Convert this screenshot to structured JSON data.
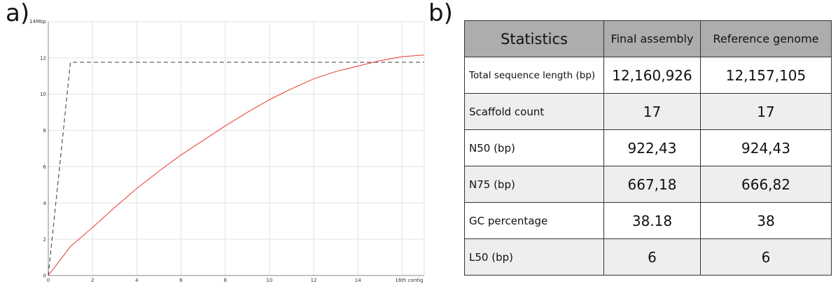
{
  "panel_labels": {
    "a": "a)",
    "b": "b)"
  },
  "colors": {
    "assembly_line": "#e8392f",
    "reference_line": "#555555",
    "grid": "#e2e2e2",
    "header_bg": "#adadad",
    "alt_row_bg": "#eeeeee"
  },
  "chart_data": {
    "type": "line",
    "x_unit_label": "th contig",
    "y_unit_label": "Mbp",
    "xlim": [
      0,
      17
    ],
    "ylim": [
      0,
      14
    ],
    "x_ticks": [
      "0",
      "2",
      "4",
      "6",
      "8",
      "10",
      "12",
      "14",
      "16"
    ],
    "y_ticks": [
      "0",
      "2",
      "4",
      "6",
      "8",
      "10",
      "12",
      "14"
    ],
    "grid": true,
    "series": [
      {
        "style": "solid",
        "color": "#e8392f",
        "x": [
          0,
          1,
          2,
          3,
          4,
          5,
          6,
          7,
          8,
          9,
          10,
          11,
          12,
          13,
          14,
          15,
          16,
          17
        ],
        "y": [
          0,
          1.6,
          2.65,
          3.75,
          4.8,
          5.75,
          6.65,
          7.45,
          8.25,
          9.0,
          9.7,
          10.3,
          10.85,
          11.25,
          11.55,
          11.85,
          12.07,
          12.16
        ]
      },
      {
        "style": "dashed",
        "color": "#555555",
        "x": [
          0,
          1,
          17
        ],
        "y": [
          0,
          11.76,
          11.76
        ]
      }
    ]
  },
  "table": {
    "headers": [
      "Statistics",
      "Final assembly",
      "Reference genome"
    ],
    "rows": [
      {
        "label": "Total sequence length (bp)",
        "final": "12,160,926",
        "reference": "12,157,105"
      },
      {
        "label": "Scaffold count",
        "final": "17",
        "reference": "17"
      },
      {
        "label": "N50 (bp)",
        "final": "922,43",
        "reference": "924,43"
      },
      {
        "label": "N75 (bp)",
        "final": "667,18",
        "reference": "666,82"
      },
      {
        "label": "GC percentage",
        "final": "38.18",
        "reference": "38"
      },
      {
        "label": "L50 (bp)",
        "final": "6",
        "reference": "6"
      }
    ]
  }
}
